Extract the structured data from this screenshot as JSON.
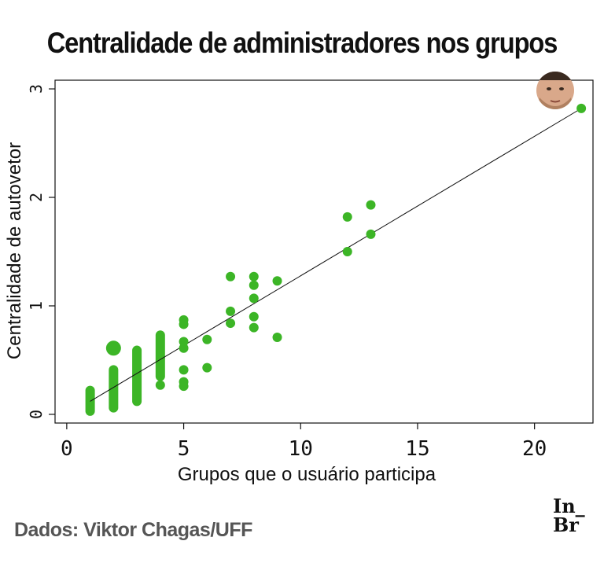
{
  "title": "Centralidade de administradores nos grupos",
  "source": "Dados: Viktor Chagas/UFF",
  "logo": {
    "line1": "In_",
    "line2": "Br"
  },
  "chart_data": {
    "type": "scatter",
    "xlabel": "Grupos que o usuário participa",
    "ylabel": "Centralidade de autovetor",
    "xlim": [
      -0.5,
      22.5
    ],
    "ylim": [
      -0.08,
      3.08
    ],
    "xticks": [
      0,
      5,
      10,
      15,
      20
    ],
    "yticks": [
      0,
      1,
      2,
      3
    ],
    "grid": false,
    "color": "#3cb526",
    "fit_line": {
      "x": [
        1,
        22
      ],
      "y": [
        0.12,
        2.82
      ],
      "color": "#111111"
    },
    "highlight": {
      "x": 22,
      "y": 2.82,
      "marker": "photo"
    },
    "vertical_bands": [
      {
        "x": 1,
        "y_min": 0.03,
        "y_max": 0.22
      },
      {
        "x": 2,
        "y_min": 0.06,
        "y_max": 0.41
      },
      {
        "x": 3,
        "y_min": 0.12,
        "y_max": 0.59
      },
      {
        "x": 4,
        "y_min": 0.35,
        "y_max": 0.73
      }
    ],
    "points": [
      {
        "x": 2,
        "y": 0.61,
        "size": "large"
      },
      {
        "x": 4,
        "y": 0.27
      },
      {
        "x": 5,
        "y": 0.87
      },
      {
        "x": 5,
        "y": 0.83
      },
      {
        "x": 5,
        "y": 0.67
      },
      {
        "x": 5,
        "y": 0.61
      },
      {
        "x": 5,
        "y": 0.41
      },
      {
        "x": 5,
        "y": 0.3
      },
      {
        "x": 5,
        "y": 0.26
      },
      {
        "x": 6,
        "y": 0.69
      },
      {
        "x": 6,
        "y": 0.43
      },
      {
        "x": 7,
        "y": 1.27
      },
      {
        "x": 7,
        "y": 0.95
      },
      {
        "x": 7,
        "y": 0.84
      },
      {
        "x": 8,
        "y": 1.27
      },
      {
        "x": 8,
        "y": 1.19
      },
      {
        "x": 8,
        "y": 1.07
      },
      {
        "x": 8,
        "y": 0.9
      },
      {
        "x": 8,
        "y": 0.8
      },
      {
        "x": 9,
        "y": 1.23
      },
      {
        "x": 9,
        "y": 0.71
      },
      {
        "x": 12,
        "y": 1.82
      },
      {
        "x": 12,
        "y": 1.5
      },
      {
        "x": 13,
        "y": 1.93
      },
      {
        "x": 13,
        "y": 1.66
      },
      {
        "x": 22,
        "y": 2.82
      }
    ]
  }
}
